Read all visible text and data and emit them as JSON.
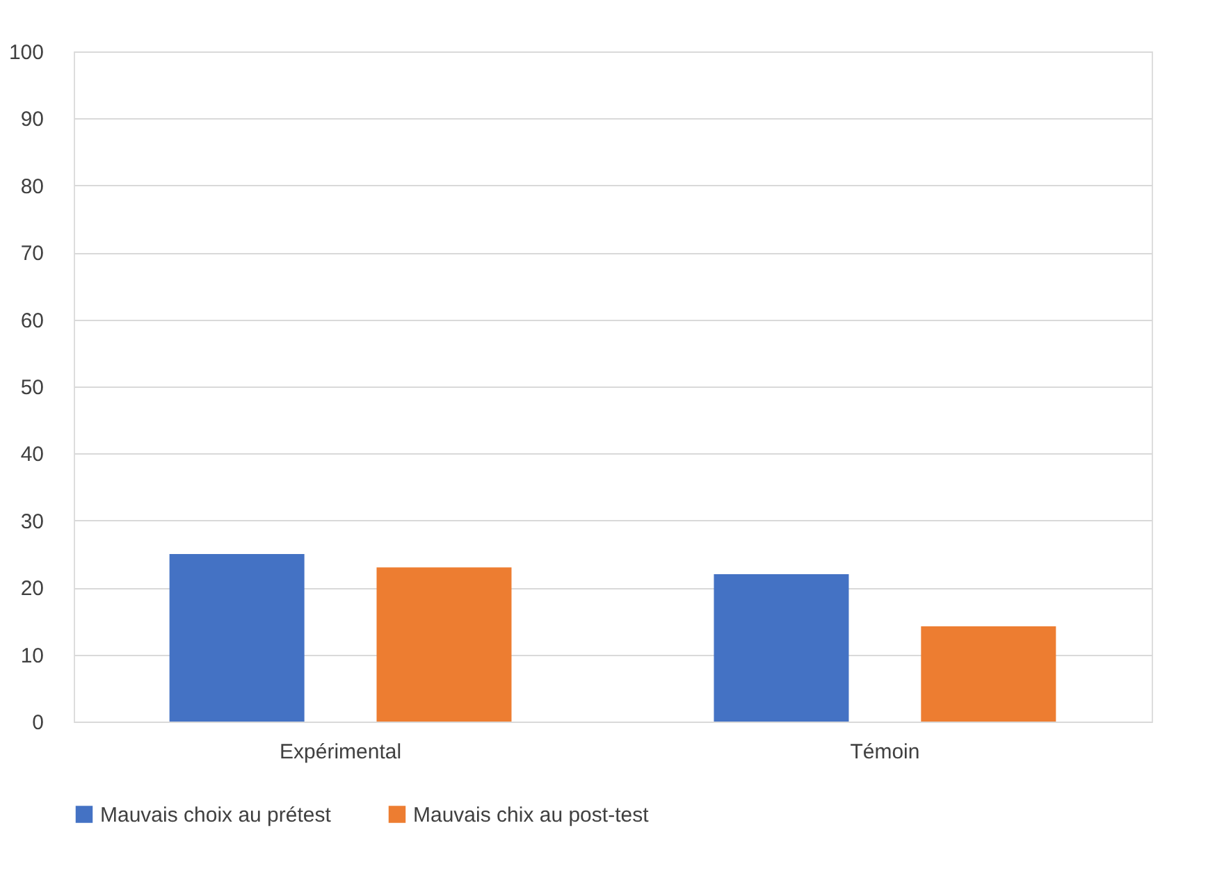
{
  "chart_data": {
    "type": "bar",
    "categories": [
      "Expérimental",
      "Témoin"
    ],
    "series": [
      {
        "name": "Mauvais choix au prétest",
        "color": "#4472c4",
        "values": [
          25,
          22
        ]
      },
      {
        "name": "Mauvais chix au post-test",
        "color": "#ed7d31",
        "values": [
          23,
          14.2
        ]
      }
    ],
    "ylim": [
      0,
      100
    ],
    "yticks": [
      0,
      10,
      20,
      30,
      40,
      50,
      60,
      70,
      80,
      90,
      100
    ],
    "grid": "y",
    "legend": "bottom"
  }
}
